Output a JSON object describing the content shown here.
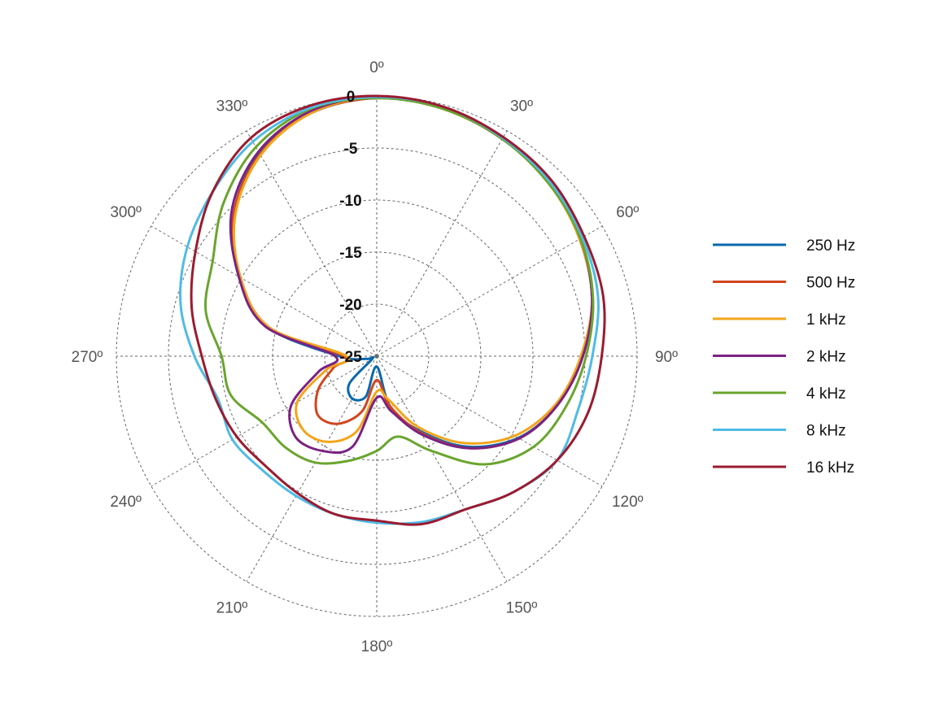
{
  "chart_data": {
    "type": "polar-line",
    "title": "",
    "theta_direction": "clockwise",
    "theta_zero": "top",
    "theta_ticks": [
      "0º",
      "30º",
      "60º",
      "90º",
      "120º",
      "150º",
      "180º",
      "210º",
      "240º",
      "270º",
      "300º",
      "330º"
    ],
    "r_ticks": [
      "0",
      "-5",
      "-10",
      "-15",
      "-20",
      "-25"
    ],
    "r_range": [
      -25,
      0
    ],
    "grid": true,
    "legend_position": "right",
    "theta_degrees": [
      0,
      15,
      30,
      45,
      60,
      75,
      90,
      105,
      120,
      135,
      150,
      165,
      180,
      195,
      210,
      225,
      240,
      255,
      270,
      285,
      300,
      315,
      330,
      345
    ],
    "series": [
      {
        "name": "250 Hz",
        "color": "#0868ac",
        "values": [
          -0.2,
          -0.4,
          -0.9,
          -1.5,
          -2.5,
          -3.6,
          -5.3,
          -7.0,
          -9.3,
          -12.7,
          -16.7,
          -20.0,
          -24.0,
          -21.0,
          -20.3,
          -21.3,
          -24.5,
          -24.0,
          -21.4,
          -14.1,
          -9.8,
          -5.6,
          -2.5,
          -0.8
        ]
      },
      {
        "name": "500 Hz",
        "color": "#d2451e",
        "values": [
          -0.2,
          -0.4,
          -0.9,
          -1.5,
          -2.5,
          -3.6,
          -5.3,
          -7.0,
          -9.2,
          -12.5,
          -16.5,
          -20.0,
          -22.7,
          -19.5,
          -17.5,
          -17.0,
          -18.5,
          -20.7,
          -21.8,
          -14.3,
          -9.9,
          -5.6,
          -2.6,
          -0.8
        ]
      },
      {
        "name": "1 kHz",
        "color": "#f2a51a",
        "values": [
          -0.1,
          -0.4,
          -0.9,
          -1.6,
          -2.5,
          -3.6,
          -5.4,
          -7.2,
          -9.7,
          -13.2,
          -17.2,
          -20.7,
          -21.6,
          -17.5,
          -15.5,
          -15.0,
          -16.2,
          -20.0,
          -22.1,
          -14.3,
          -9.9,
          -5.8,
          -2.7,
          -0.8
        ]
      },
      {
        "name": "2 kHz",
        "color": "#7b2282",
        "values": [
          -0.1,
          -0.3,
          -0.9,
          -1.5,
          -2.4,
          -3.6,
          -5.2,
          -7.0,
          -9.2,
          -12.5,
          -16.3,
          -19.5,
          -21.0,
          -16.0,
          -14.5,
          -14.0,
          -15.5,
          -19.2,
          -21.0,
          -13.9,
          -9.7,
          -5.3,
          -2.3,
          -0.6
        ]
      },
      {
        "name": "4 kHz",
        "color": "#6aa52e",
        "values": [
          -0.2,
          -0.4,
          -0.9,
          -1.6,
          -2.4,
          -3.5,
          -4.9,
          -6.2,
          -7.6,
          -10.3,
          -14.5,
          -17.0,
          -15.9,
          -14.6,
          -13.2,
          -12.6,
          -12.3,
          -10.5,
          -10.1,
          -8.0,
          -6.8,
          -4.2,
          -1.8,
          -0.4
        ]
      },
      {
        "name": "8 kHz",
        "color": "#4fbbe6",
        "values": [
          -0.1,
          -0.2,
          -0.8,
          -1.4,
          -2.2,
          -3.0,
          -4.3,
          -5.0,
          -5.0,
          -6.5,
          -8.0,
          -8.5,
          -9.0,
          -9.3,
          -9.5,
          -9.5,
          -9.0,
          -9.2,
          -7.5,
          -5.5,
          -4.0,
          -2.7,
          -1.2,
          -0.3
        ]
      },
      {
        "name": "16 kHz",
        "color": "#9b1b30",
        "values": [
          0.0,
          -0.2,
          -0.7,
          -1.2,
          -2.0,
          -2.5,
          -3.4,
          -4.0,
          -5.0,
          -6.5,
          -8.0,
          -8.3,
          -9.2,
          -9.3,
          -9.8,
          -10.0,
          -9.5,
          -9.0,
          -8.2,
          -6.6,
          -4.9,
          -2.7,
          -0.8,
          -0.1
        ]
      }
    ]
  }
}
